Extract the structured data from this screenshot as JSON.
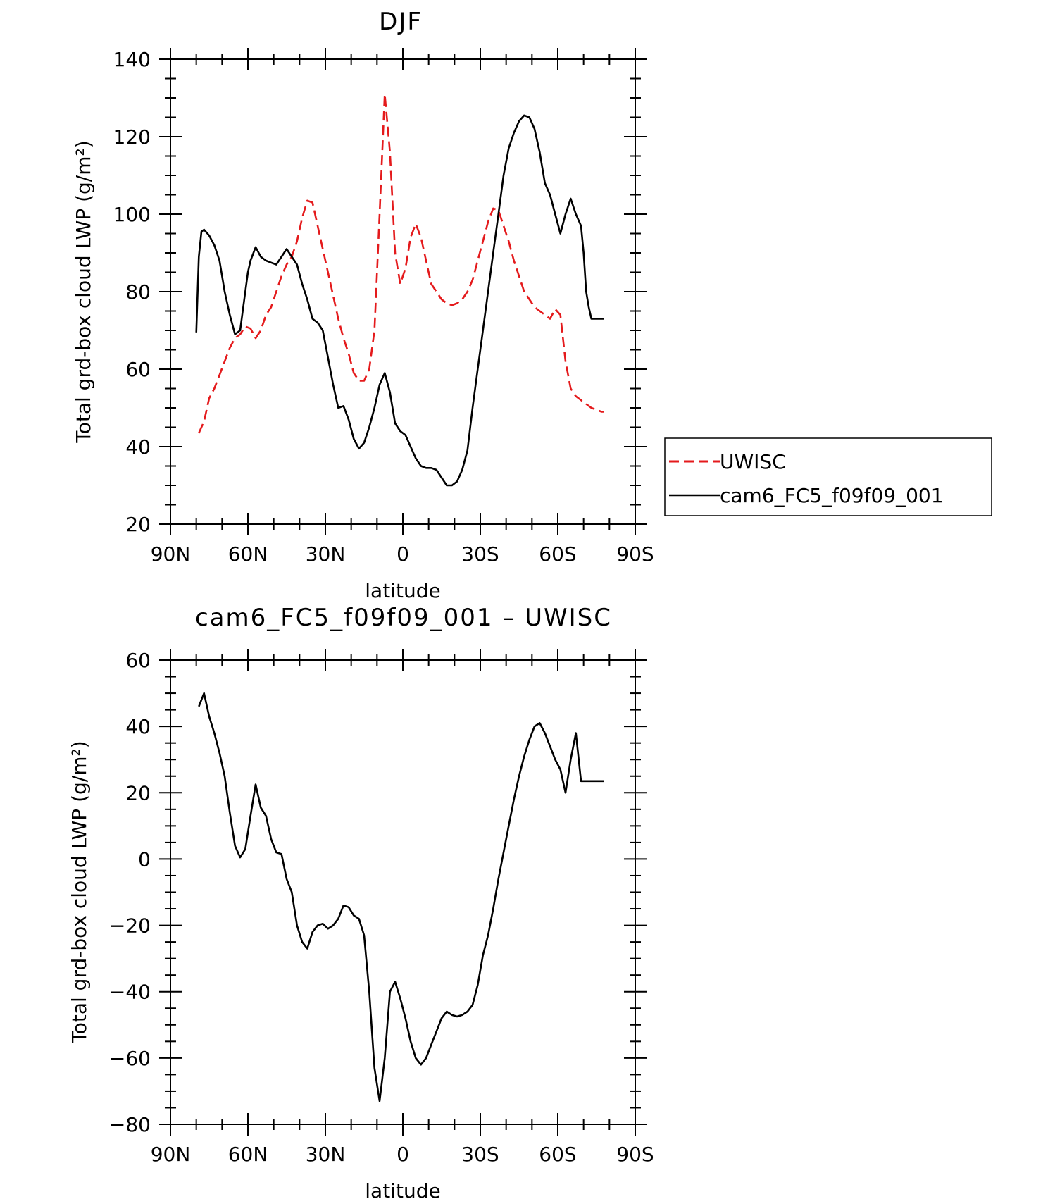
{
  "chart_data": [
    {
      "type": "line",
      "title": "DJF",
      "xlabel": "latitude",
      "ylabel": "Total grd-box cloud LWP (g/m²)",
      "ylim": [
        20,
        140
      ],
      "xlim": [
        90,
        -90
      ],
      "yticks": [
        20,
        40,
        60,
        80,
        100,
        120,
        140
      ],
      "xticks": [
        90,
        60,
        30,
        0,
        -30,
        -60,
        -90
      ],
      "xticklabels": [
        "90N",
        "60N",
        "30N",
        "0",
        "30S",
        "60S",
        "90S"
      ],
      "legend": "right, outside plot",
      "series": [
        {
          "name": "UWISC",
          "color": "#e41a1c",
          "dash": "dashed",
          "x": [
            79,
            77,
            75,
            73,
            71,
            69,
            67,
            65,
            63,
            61,
            59,
            57,
            55,
            53,
            51,
            49,
            47,
            45,
            43,
            41,
            39,
            37,
            35,
            33,
            31,
            29,
            27,
            25,
            23,
            21,
            19,
            17,
            15,
            13,
            11,
            9,
            7,
            5,
            3,
            1,
            -1,
            -3,
            -5,
            -7,
            -9,
            -11,
            -13,
            -15,
            -17,
            -19,
            -21,
            -23,
            -25,
            -27,
            -29,
            -31,
            -33,
            -35,
            -37,
            -39,
            -41,
            -43,
            -45,
            -47,
            -49,
            -51,
            -53,
            -55,
            -57,
            -59,
            -61,
            -63,
            -65,
            -67,
            -69,
            -71,
            -73,
            -75,
            -77,
            -78
          ],
          "y": [
            43.5,
            46.5,
            52.5,
            55,
            58.5,
            62,
            65.5,
            68,
            69,
            71,
            70.5,
            68,
            70,
            74,
            76,
            80,
            84,
            87,
            89,
            93,
            99,
            103.5,
            103,
            97,
            91,
            85,
            79,
            73,
            68,
            64,
            59,
            57,
            57,
            60,
            70,
            100,
            131,
            116,
            90,
            82,
            86,
            94,
            97.5,
            94,
            88,
            82,
            80,
            78,
            77,
            76.5,
            77,
            78,
            80,
            83,
            88,
            93,
            98,
            101.5,
            101,
            97,
            93,
            88,
            84,
            80,
            78,
            76,
            75,
            74,
            73,
            75.5,
            74,
            62,
            55,
            53,
            52,
            51,
            50,
            49.5,
            49,
            49
          ]
        },
        {
          "name": "cam6_FC5_f09f09_001",
          "color": "#000000",
          "dash": "solid",
          "x": [
            80,
            79,
            78,
            77,
            75,
            73,
            71,
            69,
            67,
            65,
            63,
            61,
            60,
            59,
            57,
            55,
            53,
            51,
            49,
            47,
            45,
            43,
            41,
            39,
            37,
            35,
            33,
            31,
            29,
            27,
            25,
            23,
            21,
            19,
            17,
            15,
            13,
            11,
            9,
            7,
            5,
            3,
            1,
            -1,
            -3,
            -5,
            -7,
            -9,
            -11,
            -13,
            -15,
            -17,
            -19,
            -21,
            -23,
            -25,
            -27,
            -29,
            -31,
            -33,
            -35,
            -37,
            -39,
            -41,
            -43,
            -45,
            -47,
            -49,
            -51,
            -53,
            -55,
            -57,
            -59,
            -61,
            -63,
            -65,
            -67,
            -69,
            -70,
            -71,
            -72,
            -73,
            -74,
            -75,
            -76,
            -77,
            -78
          ],
          "y": [
            69.5,
            89,
            95.5,
            96,
            94.5,
            92,
            88,
            80,
            74,
            69,
            70,
            80,
            85,
            88,
            91.5,
            89,
            88,
            87.5,
            87,
            89,
            91,
            89,
            87,
            82,
            78,
            73,
            72,
            70,
            63,
            56,
            50,
            50.5,
            47,
            42,
            39.5,
            41,
            45,
            50,
            56,
            59,
            54,
            46,
            44,
            43,
            40,
            37,
            35,
            34.5,
            34.5,
            34,
            32,
            30,
            30,
            31,
            34,
            39,
            50,
            60,
            70,
            80,
            90,
            100,
            110,
            117,
            121,
            124,
            125.5,
            125,
            122,
            116,
            108,
            105,
            100,
            95,
            100,
            104,
            100,
            97,
            90,
            80,
            76,
            73,
            73,
            73,
            73,
            73,
            73
          ]
        }
      ]
    },
    {
      "type": "line",
      "title": "cam6_FC5_f09f09_001 – UWISC",
      "xlabel": "latitude",
      "ylabel": "Total grd-box cloud LWP (g/m²)",
      "ylim": [
        -80,
        60
      ],
      "xlim": [
        90,
        -90
      ],
      "yticks": [
        -80,
        -60,
        -40,
        -20,
        0,
        20,
        40,
        60
      ],
      "xticks": [
        90,
        60,
        30,
        0,
        -30,
        -60,
        -90
      ],
      "xticklabels": [
        "90N",
        "60N",
        "30N",
        "0",
        "30S",
        "60S",
        "90S"
      ],
      "series": [
        {
          "color": "#000000",
          "dash": "solid",
          "x": [
            79,
            77,
            75,
            73,
            71,
            69,
            67,
            65,
            63,
            61,
            59,
            57,
            55,
            53,
            51,
            49,
            47,
            45,
            43,
            41,
            39,
            37,
            35,
            33,
            31,
            29,
            27,
            25,
            23,
            21,
            19,
            17,
            15,
            13,
            11,
            9,
            7,
            5,
            3,
            1,
            -1,
            -3,
            -5,
            -7,
            -9,
            -11,
            -13,
            -15,
            -17,
            -19,
            -21,
            -23,
            -25,
            -27,
            -29,
            -31,
            -33,
            -35,
            -37,
            -39,
            -41,
            -43,
            -45,
            -47,
            -49,
            -51,
            -53,
            -55,
            -57,
            -59,
            -61,
            -63,
            -65,
            -67,
            -69,
            -71,
            -73,
            -75,
            -77,
            -78
          ],
          "y": [
            46,
            50,
            43,
            38,
            32,
            25,
            14,
            4,
            0.5,
            3,
            13,
            22.5,
            15.5,
            13,
            6,
            2,
            1.5,
            -6,
            -10,
            -20,
            -25,
            -27,
            -22,
            -20,
            -19.5,
            -21,
            -20,
            -18,
            -14,
            -14.5,
            -17,
            -18,
            -23,
            -40,
            -63,
            -73,
            -60,
            -40,
            -37,
            -42,
            -48,
            -55,
            -60,
            -62,
            -60,
            -56,
            -52,
            -48,
            -46,
            -47,
            -47.5,
            -47,
            -46,
            -44,
            -38,
            -29,
            -23,
            -15,
            -6,
            2,
            10,
            18,
            25,
            31,
            36,
            40,
            41,
            38,
            34,
            30,
            27,
            20,
            30,
            38,
            23.5,
            23.5,
            23.5,
            23.5,
            23.5,
            23.5
          ]
        }
      ]
    }
  ]
}
